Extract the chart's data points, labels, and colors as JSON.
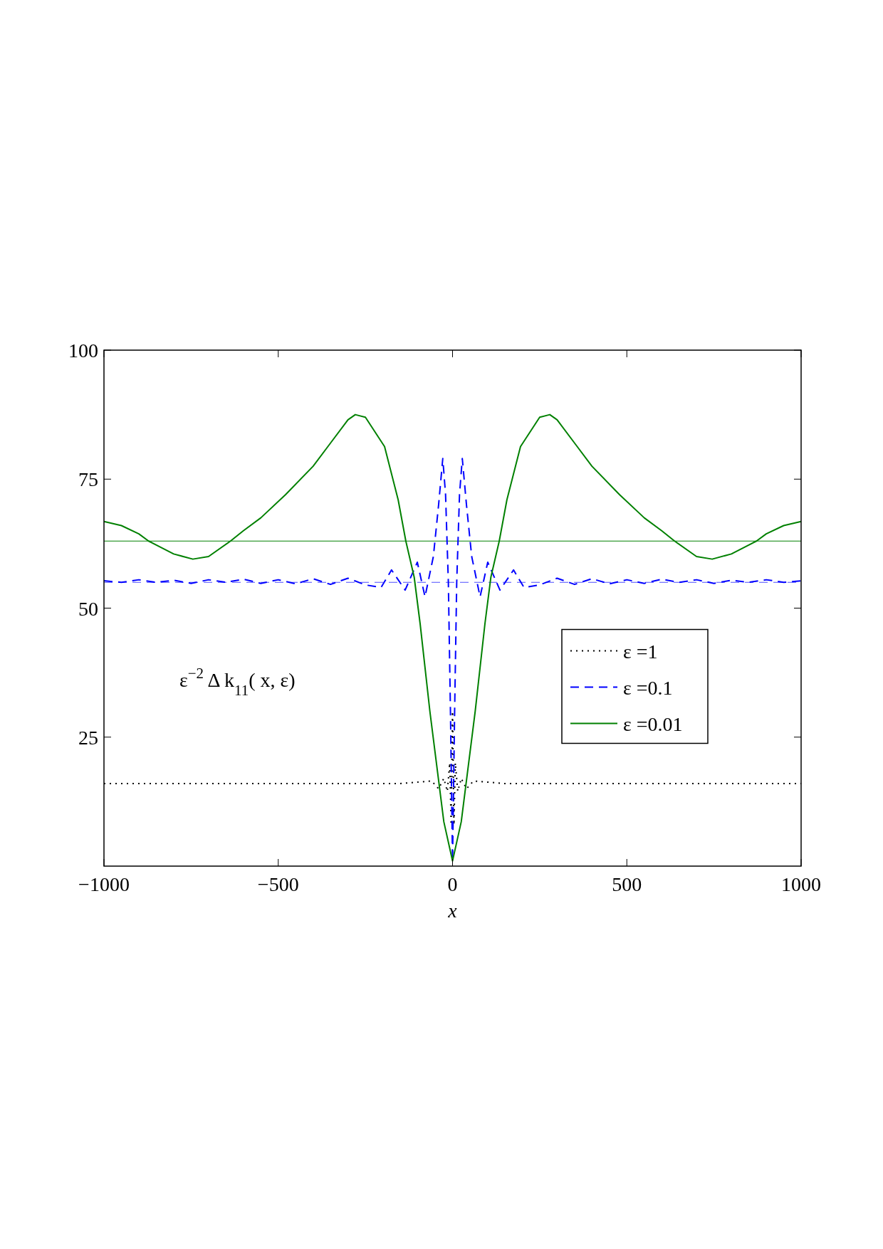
{
  "chart_data": {
    "type": "line",
    "xlabel": "x",
    "annotations": [
      "ε$^{−2}$ Δ k$_{11}$( x, ε)"
    ],
    "xlim": [
      -1000,
      1000
    ],
    "ylim": [
      0,
      100
    ],
    "xticks": [
      {
        "value": -1000,
        "label": "−1000"
      },
      {
        "value": -500,
        "label": "−500"
      },
      0,
      500,
      1000
    ],
    "yticks": [
      25,
      50,
      75,
      100
    ],
    "grid": false,
    "legend": "right",
    "series": [
      {
        "name": "ε =1",
        "color": "#000000",
        "line_style": "dotted",
        "x": [
          -1000,
          -150,
          -60,
          -40,
          -25,
          -15,
          -8,
          -4,
          0,
          4,
          8,
          15,
          25,
          40,
          60,
          150,
          1000
        ],
        "values": [
          16,
          16,
          16.5,
          15,
          17,
          14.5,
          20,
          8,
          30,
          8,
          20,
          14.5,
          17,
          15,
          16.5,
          16,
          16
        ]
      },
      {
        "name": "ε =0.1",
        "color": "#0000ff",
        "line_style": "dashed",
        "x": [
          -1000,
          -950,
          -900,
          -850,
          -800,
          -750,
          -700,
          -650,
          -600,
          -550,
          -500,
          -450,
          -400,
          -350,
          -300,
          -250,
          -205,
          -175,
          -136,
          -101,
          -79,
          -55,
          -40,
          -28,
          -20,
          -12,
          -6,
          0,
          6,
          12,
          20,
          28,
          40,
          55,
          79,
          101,
          136,
          175,
          205,
          250,
          300,
          350,
          400,
          450,
          500,
          550,
          600,
          650,
          700,
          750,
          800,
          850,
          900,
          950,
          1000
        ],
        "values": [
          55.3,
          55,
          55.5,
          55,
          55.4,
          54.8,
          55.5,
          55,
          55.6,
          54.8,
          55.5,
          54.7,
          55.7,
          54.6,
          55.8,
          54.5,
          54,
          57.4,
          53.5,
          58.9,
          52.2,
          60,
          70,
          79,
          72,
          55,
          30,
          1,
          30,
          55,
          72,
          79,
          70,
          60,
          52.2,
          58.9,
          53.5,
          57.4,
          54,
          54.5,
          55.8,
          54.6,
          55.7,
          54.7,
          55.5,
          54.8,
          55.6,
          55,
          55.5,
          54.8,
          55.4,
          55,
          55.5,
          55,
          55.3
        ]
      },
      {
        "name": "ε =0.01",
        "color": "#008000",
        "line_style": "solid",
        "x": [
          -1000,
          -950,
          -900,
          -872,
          -800,
          -745,
          -700,
          -637,
          -600,
          -550,
          -479,
          -400,
          -350,
          -300,
          -279,
          -250,
          -195,
          -156,
          -134,
          -110,
          -93,
          -65,
          -25,
          0,
          25,
          65,
          93,
          110,
          134,
          156,
          195,
          250,
          279,
          300,
          350,
          400,
          479,
          550,
          600,
          637,
          700,
          745,
          800,
          872,
          900,
          950,
          1000
        ],
        "values": [
          66.8,
          66,
          64.4,
          63,
          60.5,
          59.5,
          60,
          63,
          65,
          67.5,
          72,
          77.5,
          82,
          86.5,
          87.5,
          87,
          81.3,
          71,
          63,
          56,
          47,
          30,
          8.6,
          1,
          8.6,
          30,
          47,
          56,
          63,
          71,
          81.3,
          87,
          87.5,
          86.5,
          82,
          77.5,
          72,
          67.5,
          65,
          63,
          60,
          59.5,
          60.5,
          63,
          64.4,
          66,
          66.8
        ]
      }
    ],
    "ref_lines": [
      {
        "axis": "y",
        "value": 63,
        "color": "#008000",
        "line_style": "solid"
      },
      {
        "axis": "y",
        "value": 55,
        "color": "#4d4dff",
        "line_style": "dashed"
      }
    ]
  }
}
